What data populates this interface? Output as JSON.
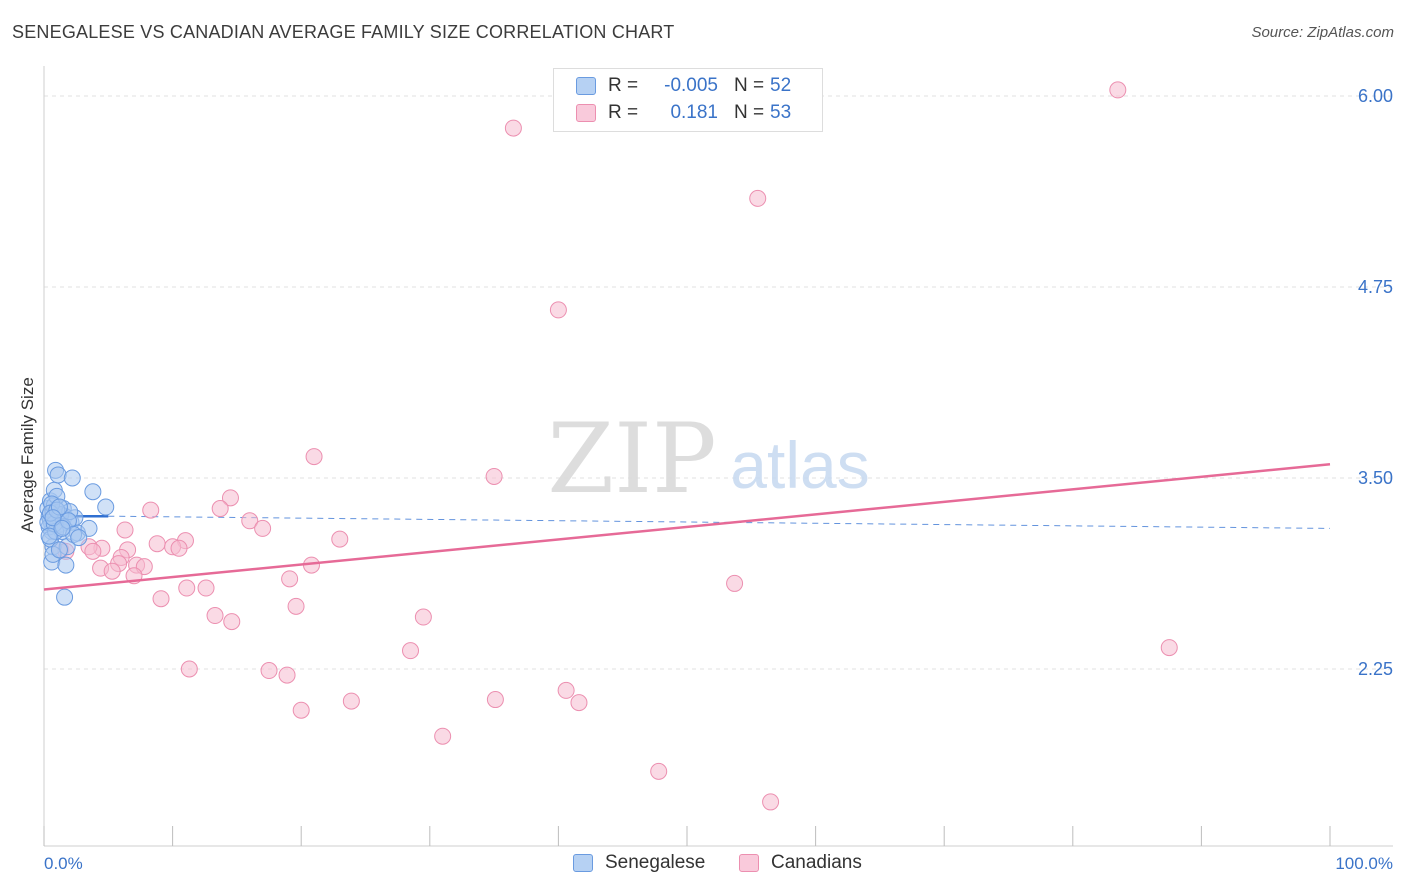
{
  "title": "SENEGALESE VS CANADIAN AVERAGE FAMILY SIZE CORRELATION CHART",
  "source": "Source: ZipAtlas.com",
  "watermark": {
    "zip": "ZIP",
    "atlas": "atlas"
  },
  "legend": {
    "rows": [
      {
        "r_label": "R =",
        "r_value": "-0.005",
        "n_label": "N =",
        "n_value": "52"
      },
      {
        "r_label": "R =",
        "r_value": "0.181",
        "n_label": "N =",
        "n_value": "53"
      }
    ]
  },
  "bottom_legend": {
    "senegalese": "Senegalese",
    "canadians": "Canadians"
  },
  "colors": {
    "blue_fill": "#a9c8f0",
    "blue_stroke": "#6a9be0",
    "blue_line": "#2f6fd1",
    "pink_fill": "#f6bcd0",
    "pink_stroke": "#ec8fb0",
    "pink_line": "#e66a97",
    "tick_label": "#3a73c8",
    "grid": "#e2e2e2"
  },
  "chart_data": {
    "type": "scatter",
    "title": "SENEGALESE VS CANADIAN AVERAGE FAMILY SIZE CORRELATION CHART",
    "xlabel": "",
    "ylabel": "Average Family Size",
    "xlim": [
      0,
      100
    ],
    "ylim": [
      1.2,
      6.3
    ],
    "x_tick_labels": [
      "0.0%",
      "100.0%"
    ],
    "y_ticks": [
      2.25,
      3.5,
      4.75,
      6.0
    ],
    "y_tick_labels": [
      "2.25",
      "3.50",
      "4.75",
      "6.00"
    ],
    "series": [
      {
        "name": "Senegalese",
        "r": -0.005,
        "n": 52,
        "trend_solid": {
          "x": [
            0,
            5
          ],
          "y": [
            3.25,
            3.25
          ]
        },
        "trend_dashed": {
          "x": [
            5,
            100
          ],
          "y": [
            3.25,
            3.17
          ]
        },
        "points": [
          [
            0.3,
            3.3
          ],
          [
            0.4,
            3.25
          ],
          [
            0.5,
            3.22
          ],
          [
            0.6,
            3.2
          ],
          [
            0.7,
            3.28
          ],
          [
            0.5,
            3.35
          ],
          [
            0.8,
            3.32
          ],
          [
            0.9,
            3.27
          ],
          [
            1.0,
            3.22
          ],
          [
            1.1,
            3.19
          ],
          [
            0.6,
            3.15
          ],
          [
            0.7,
            3.05
          ],
          [
            0.8,
            3.42
          ],
          [
            0.9,
            3.55
          ],
          [
            1.2,
            3.26
          ],
          [
            1.3,
            3.2
          ],
          [
            1.4,
            3.15
          ],
          [
            1.5,
            3.3
          ],
          [
            1.6,
            3.25
          ],
          [
            0.4,
            3.18
          ],
          [
            0.5,
            3.1
          ],
          [
            0.6,
            2.95
          ],
          [
            0.7,
            3.0
          ],
          [
            1.0,
            3.38
          ],
          [
            1.1,
            3.52
          ],
          [
            1.7,
            2.93
          ],
          [
            1.8,
            3.05
          ],
          [
            1.6,
            2.72
          ],
          [
            2.2,
            3.5
          ],
          [
            2.1,
            3.21
          ],
          [
            2.4,
            3.24
          ],
          [
            2.6,
            3.14
          ],
          [
            3.5,
            3.17
          ],
          [
            3.8,
            3.41
          ],
          [
            4.8,
            3.31
          ],
          [
            1.2,
            3.03
          ],
          [
            0.3,
            3.21
          ],
          [
            0.9,
            3.15
          ],
          [
            1.3,
            3.26
          ],
          [
            0.8,
            3.2
          ],
          [
            1.5,
            3.18
          ],
          [
            2.0,
            3.28
          ],
          [
            0.4,
            3.12
          ],
          [
            0.6,
            3.33
          ],
          [
            1.9,
            3.22
          ],
          [
            2.3,
            3.13
          ],
          [
            0.5,
            3.27
          ],
          [
            1.0,
            3.29
          ],
          [
            1.2,
            3.31
          ],
          [
            0.7,
            3.24
          ],
          [
            1.4,
            3.17
          ],
          [
            2.7,
            3.11
          ]
        ]
      },
      {
        "name": "Canadians",
        "r": 0.181,
        "n": 53,
        "trend": {
          "x": [
            0,
            100
          ],
          "y": [
            2.77,
            3.59
          ]
        },
        "points": [
          [
            83.5,
            6.04
          ],
          [
            36.5,
            5.79
          ],
          [
            55.5,
            5.33
          ],
          [
            40.0,
            4.6
          ],
          [
            21.0,
            3.64
          ],
          [
            35.0,
            3.51
          ],
          [
            14.5,
            3.37
          ],
          [
            8.3,
            3.29
          ],
          [
            16.0,
            3.22
          ],
          [
            17.0,
            3.17
          ],
          [
            6.3,
            3.16
          ],
          [
            11.0,
            3.09
          ],
          [
            8.8,
            3.07
          ],
          [
            10.0,
            3.05
          ],
          [
            10.5,
            3.04
          ],
          [
            4.5,
            3.04
          ],
          [
            3.5,
            3.05
          ],
          [
            6.5,
            3.03
          ],
          [
            3.8,
            3.02
          ],
          [
            1.3,
            3.03
          ],
          [
            1.7,
            3.02
          ],
          [
            6.0,
            2.98
          ],
          [
            5.8,
            2.94
          ],
          [
            7.2,
            2.93
          ],
          [
            7.8,
            2.92
          ],
          [
            4.4,
            2.91
          ],
          [
            20.8,
            2.93
          ],
          [
            5.3,
            2.89
          ],
          [
            7.0,
            2.86
          ],
          [
            19.1,
            2.84
          ],
          [
            53.7,
            2.81
          ],
          [
            11.1,
            2.78
          ],
          [
            12.6,
            2.78
          ],
          [
            9.1,
            2.71
          ],
          [
            19.6,
            2.66
          ],
          [
            13.3,
            2.6
          ],
          [
            29.5,
            2.59
          ],
          [
            14.6,
            2.56
          ],
          [
            28.5,
            2.37
          ],
          [
            87.5,
            2.39
          ],
          [
            11.3,
            2.25
          ],
          [
            17.5,
            2.24
          ],
          [
            18.9,
            2.21
          ],
          [
            40.6,
            2.11
          ],
          [
            23.9,
            2.04
          ],
          [
            35.1,
            2.05
          ],
          [
            41.6,
            2.03
          ],
          [
            20.0,
            1.98
          ],
          [
            31.0,
            1.81
          ],
          [
            47.8,
            1.58
          ],
          [
            56.5,
            1.38
          ],
          [
            13.7,
            3.3
          ],
          [
            23.0,
            3.1
          ]
        ]
      }
    ]
  }
}
